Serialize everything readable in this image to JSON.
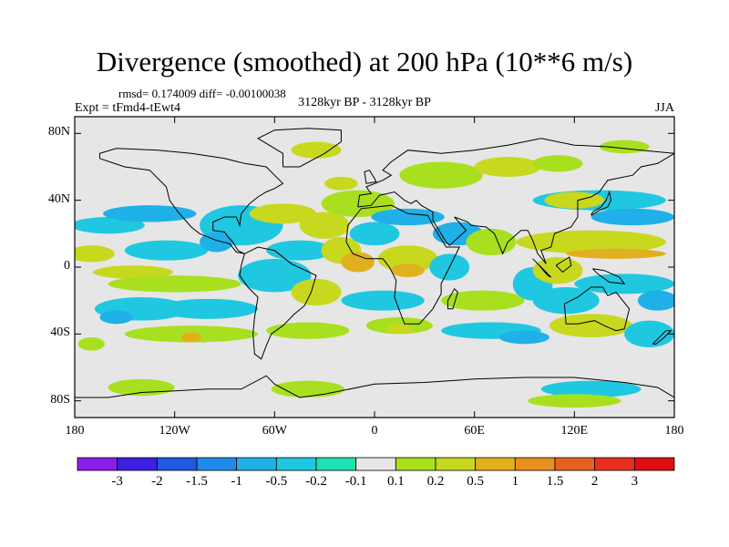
{
  "title": "Divergence (smoothed) at 200 hPa (10**6 m/s)",
  "stats": "rmsd= 0.174009 diff= -0.00100038",
  "experiment": "Expt = tFmd4-tEwt4",
  "period": "3128kyr BP - 3128kyr BP",
  "season": "JJA",
  "map": {
    "projection": "cylindrical-equidistant",
    "lon_range": [
      -180,
      180
    ],
    "lat_range": [
      -90,
      90
    ],
    "background_color": "#e6e6e6",
    "lat_ticks": [
      {
        "label": "80N",
        "lat": 80
      },
      {
        "label": "40N",
        "lat": 40
      },
      {
        "label": "0",
        "lat": 0
      },
      {
        "label": "40S",
        "lat": -40
      },
      {
        "label": "80S",
        "lat": -80
      }
    ],
    "lon_ticks": [
      {
        "label": "180",
        "lon": -180
      },
      {
        "label": "120W",
        "lon": -120
      },
      {
        "label": "60W",
        "lon": -60
      },
      {
        "label": "0",
        "lon": 0
      },
      {
        "label": "60E",
        "lon": 60
      },
      {
        "label": "120E",
        "lon": 120
      },
      {
        "label": "180",
        "lon": 180
      }
    ]
  },
  "colorbar": {
    "colors": [
      "#8a1fe8",
      "#3c1fe0",
      "#1f5be0",
      "#1f8be8",
      "#1fb0e8",
      "#1fc8e0",
      "#1fe0b0",
      "#e6e6e6",
      "#a8e01f",
      "#c8d81f",
      "#e0b01f",
      "#e8901f",
      "#e8601f",
      "#e8301f",
      "#e00f0f"
    ],
    "labels": [
      "-3",
      "-2",
      "-1.5",
      "-1",
      "-0.5",
      "-0.2",
      "-0.1",
      "0.1",
      "0.2",
      "0.5",
      "1",
      "1.5",
      "2",
      "3"
    ]
  },
  "field_blobs": [
    {
      "lon": -160,
      "lat": 25,
      "rlon": 22,
      "rlat": 5,
      "level": 5,
      "note": "cyan band N Pacific"
    },
    {
      "lon": -135,
      "lat": 32,
      "rlon": 28,
      "rlat": 5,
      "level": 4
    },
    {
      "lon": -170,
      "lat": 8,
      "rlon": 14,
      "rlat": 5,
      "level": 9
    },
    {
      "lon": -125,
      "lat": 10,
      "rlon": 25,
      "rlat": 6,
      "level": 5
    },
    {
      "lon": -145,
      "lat": -3,
      "rlon": 24,
      "rlat": 4,
      "level": 9
    },
    {
      "lon": -120,
      "lat": -10,
      "rlon": 40,
      "rlat": 5,
      "level": 8
    },
    {
      "lon": -140,
      "lat": -25,
      "rlon": 28,
      "rlat": 7,
      "level": 5
    },
    {
      "lon": -155,
      "lat": -30,
      "rlon": 10,
      "rlat": 4,
      "level": 4
    },
    {
      "lon": -100,
      "lat": -25,
      "rlon": 30,
      "rlat": 6,
      "level": 5
    },
    {
      "lon": -110,
      "lat": -40,
      "rlon": 40,
      "rlat": 5,
      "level": 8
    },
    {
      "lon": -110,
      "lat": -42,
      "rlon": 6,
      "rlat": 3,
      "level": 10
    },
    {
      "lon": -170,
      "lat": -46,
      "rlon": 8,
      "rlat": 4,
      "level": 8
    },
    {
      "lon": -80,
      "lat": 25,
      "rlon": 25,
      "rlat": 12,
      "level": 5
    },
    {
      "lon": -95,
      "lat": 15,
      "rlon": 10,
      "rlat": 6,
      "level": 4
    },
    {
      "lon": -55,
      "lat": 32,
      "rlon": 20,
      "rlat": 6,
      "level": 9
    },
    {
      "lon": -45,
      "lat": 10,
      "rlon": 20,
      "rlat": 6,
      "level": 5
    },
    {
      "lon": -30,
      "lat": 25,
      "rlon": 15,
      "rlat": 8,
      "level": 9
    },
    {
      "lon": -60,
      "lat": -5,
      "rlon": 22,
      "rlat": 10,
      "level": 5
    },
    {
      "lon": -35,
      "lat": -15,
      "rlon": 15,
      "rlat": 8,
      "level": 9
    },
    {
      "lon": -40,
      "lat": -38,
      "rlon": 25,
      "rlat": 5,
      "level": 8
    },
    {
      "lon": -10,
      "lat": 38,
      "rlon": 22,
      "rlat": 8,
      "level": 8
    },
    {
      "lon": 20,
      "lat": 30,
      "rlon": 22,
      "rlat": 5,
      "level": 4
    },
    {
      "lon": 0,
      "lat": 20,
      "rlon": 15,
      "rlat": 7,
      "level": 5
    },
    {
      "lon": -20,
      "lat": 10,
      "rlon": 12,
      "rlat": 8,
      "level": 9
    },
    {
      "lon": -10,
      "lat": 3,
      "rlon": 10,
      "rlat": 6,
      "level": 10
    },
    {
      "lon": 20,
      "lat": 5,
      "rlon": 18,
      "rlat": 8,
      "level": 9
    },
    {
      "lon": 20,
      "lat": -2,
      "rlon": 10,
      "rlat": 4,
      "level": 10
    },
    {
      "lon": 5,
      "lat": -20,
      "rlon": 25,
      "rlat": 6,
      "level": 5
    },
    {
      "lon": 15,
      "lat": -35,
      "rlon": 20,
      "rlat": 5,
      "level": 8
    },
    {
      "lon": 15,
      "lat": -37,
      "rlon": 8,
      "rlat": 3,
      "level": 9
    },
    {
      "lon": 50,
      "lat": 20,
      "rlon": 15,
      "rlat": 7,
      "level": 4
    },
    {
      "lon": 45,
      "lat": 0,
      "rlon": 12,
      "rlat": 8,
      "level": 5
    },
    {
      "lon": 70,
      "lat": 15,
      "rlon": 15,
      "rlat": 8,
      "level": 8
    },
    {
      "lon": 65,
      "lat": -20,
      "rlon": 25,
      "rlat": 6,
      "level": 8
    },
    {
      "lon": 70,
      "lat": -38,
      "rlon": 30,
      "rlat": 5,
      "level": 5
    },
    {
      "lon": 90,
      "lat": -42,
      "rlon": 15,
      "rlat": 4,
      "level": 4
    },
    {
      "lon": 95,
      "lat": -10,
      "rlon": 12,
      "rlat": 10,
      "level": 5
    },
    {
      "lon": 110,
      "lat": -2,
      "rlon": 15,
      "rlat": 8,
      "level": 9
    },
    {
      "lon": 115,
      "lat": -20,
      "rlon": 20,
      "rlat": 8,
      "level": 5
    },
    {
      "lon": 130,
      "lat": -35,
      "rlon": 25,
      "rlat": 7,
      "level": 9
    },
    {
      "lon": 135,
      "lat": 40,
      "rlon": 40,
      "rlat": 6,
      "level": 5
    },
    {
      "lon": 155,
      "lat": 30,
      "rlon": 25,
      "rlat": 5,
      "level": 4
    },
    {
      "lon": 130,
      "lat": 15,
      "rlon": 45,
      "rlat": 7,
      "level": 9
    },
    {
      "lon": 145,
      "lat": 8,
      "rlon": 30,
      "rlat": 3,
      "level": 10
    },
    {
      "lon": 150,
      "lat": -10,
      "rlon": 30,
      "rlat": 6,
      "level": 5
    },
    {
      "lon": 170,
      "lat": -20,
      "rlon": 12,
      "rlat": 6,
      "level": 4
    },
    {
      "lon": 165,
      "lat": -40,
      "rlon": 15,
      "rlat": 8,
      "level": 5
    },
    {
      "lon": 40,
      "lat": 55,
      "rlon": 25,
      "rlat": 8,
      "level": 8
    },
    {
      "lon": 80,
      "lat": 60,
      "rlon": 20,
      "rlat": 6,
      "level": 9
    },
    {
      "lon": 110,
      "lat": 62,
      "rlon": 15,
      "rlat": 5,
      "level": 8
    },
    {
      "lon": 120,
      "lat": 40,
      "rlon": 18,
      "rlat": 5,
      "level": 9
    },
    {
      "lon": -35,
      "lat": 70,
      "rlon": 15,
      "rlat": 5,
      "level": 9
    },
    {
      "lon": -20,
      "lat": 50,
      "rlon": 10,
      "rlat": 4,
      "level": 9
    },
    {
      "lon": 150,
      "lat": 72,
      "rlon": 15,
      "rlat": 4,
      "level": 8
    },
    {
      "lon": -140,
      "lat": -72,
      "rlon": 20,
      "rlat": 5,
      "level": 8
    },
    {
      "lon": -40,
      "lat": -73,
      "rlon": 22,
      "rlat": 5,
      "level": 8
    },
    {
      "lon": 130,
      "lat": -73,
      "rlon": 30,
      "rlat": 5,
      "level": 5
    },
    {
      "lon": 120,
      "lat": -80,
      "rlon": 28,
      "rlat": 4,
      "level": 8
    }
  ],
  "coastlines": [
    {
      "name": "North America",
      "pts": [
        [
          -165,
          65
        ],
        [
          -150,
          60
        ],
        [
          -135,
          58
        ],
        [
          -125,
          48
        ],
        [
          -123,
          40
        ],
        [
          -118,
          33
        ],
        [
          -110,
          24
        ],
        [
          -105,
          20
        ],
        [
          -95,
          16
        ],
        [
          -87,
          14
        ],
        [
          -83,
          9
        ],
        [
          -78,
          8
        ],
        [
          -82,
          10
        ],
        [
          -85,
          15
        ],
        [
          -88,
          18
        ],
        [
          -90,
          21
        ],
        [
          -97,
          22
        ],
        [
          -97,
          27
        ],
        [
          -90,
          30
        ],
        [
          -83,
          30
        ],
        [
          -81,
          25
        ],
        [
          -80,
          32
        ],
        [
          -75,
          38
        ],
        [
          -70,
          42
        ],
        [
          -65,
          45
        ],
        [
          -60,
          47
        ],
        [
          -55,
          50
        ],
        [
          -60,
          55
        ],
        [
          -65,
          60
        ],
        [
          -78,
          62
        ],
        [
          -90,
          65
        ],
        [
          -110,
          68
        ],
        [
          -130,
          70
        ],
        [
          -155,
          71
        ],
        [
          -165,
          68
        ],
        [
          -165,
          65
        ]
      ]
    },
    {
      "name": "Greenland",
      "pts": [
        [
          -55,
          60
        ],
        [
          -45,
          60
        ],
        [
          -30,
          68
        ],
        [
          -20,
          75
        ],
        [
          -20,
          82
        ],
        [
          -40,
          83
        ],
        [
          -60,
          82
        ],
        [
          -70,
          77
        ],
        [
          -55,
          68
        ],
        [
          -55,
          60
        ]
      ]
    },
    {
      "name": "South America",
      "pts": [
        [
          -78,
          8
        ],
        [
          -70,
          12
        ],
        [
          -60,
          10
        ],
        [
          -50,
          2
        ],
        [
          -35,
          -5
        ],
        [
          -38,
          -15
        ],
        [
          -42,
          -23
        ],
        [
          -48,
          -28
        ],
        [
          -55,
          -35
        ],
        [
          -62,
          -40
        ],
        [
          -65,
          -47
        ],
        [
          -68,
          -55
        ],
        [
          -72,
          -52
        ],
        [
          -73,
          -40
        ],
        [
          -72,
          -30
        ],
        [
          -70,
          -18
        ],
        [
          -76,
          -12
        ],
        [
          -81,
          -5
        ],
        [
          -80,
          1
        ],
        [
          -78,
          8
        ]
      ]
    },
    {
      "name": "Africa",
      "pts": [
        [
          -17,
          15
        ],
        [
          -16,
          25
        ],
        [
          -8,
          35
        ],
        [
          10,
          37
        ],
        [
          20,
          32
        ],
        [
          32,
          31
        ],
        [
          35,
          25
        ],
        [
          43,
          12
        ],
        [
          51,
          12
        ],
        [
          45,
          0
        ],
        [
          40,
          -10
        ],
        [
          40,
          -16
        ],
        [
          35,
          -25
        ],
        [
          27,
          -34
        ],
        [
          18,
          -34
        ],
        [
          12,
          -18
        ],
        [
          13,
          -8
        ],
        [
          9,
          0
        ],
        [
          5,
          5
        ],
        [
          -5,
          5
        ],
        [
          -13,
          8
        ],
        [
          -17,
          15
        ]
      ]
    },
    {
      "name": "Eurasia",
      "pts": [
        [
          -10,
          36
        ],
        [
          -9,
          43
        ],
        [
          -2,
          44
        ],
        [
          -5,
          48
        ],
        [
          5,
          52
        ],
        [
          10,
          55
        ],
        [
          5,
          58
        ],
        [
          10,
          63
        ],
        [
          20,
          70
        ],
        [
          40,
          68
        ],
        [
          60,
          70
        ],
        [
          80,
          73
        ],
        [
          100,
          77
        ],
        [
          120,
          73
        ],
        [
          140,
          72
        ],
        [
          160,
          70
        ],
        [
          180,
          68
        ],
        [
          170,
          62
        ],
        [
          160,
          60
        ],
        [
          155,
          55
        ],
        [
          140,
          52
        ],
        [
          135,
          45
        ],
        [
          130,
          42
        ],
        [
          122,
          40
        ],
        [
          122,
          30
        ],
        [
          118,
          24
        ],
        [
          108,
          20
        ],
        [
          106,
          12
        ],
        [
          100,
          10
        ],
        [
          103,
          2
        ],
        [
          98,
          8
        ],
        [
          95,
          16
        ],
        [
          92,
          22
        ],
        [
          88,
          22
        ],
        [
          80,
          15
        ],
        [
          77,
          8
        ],
        [
          72,
          20
        ],
        [
          67,
          24
        ],
        [
          58,
          25
        ],
        [
          56,
          27
        ],
        [
          48,
          30
        ],
        [
          55,
          22
        ],
        [
          45,
          13
        ],
        [
          43,
          15
        ],
        [
          35,
          28
        ],
        [
          35,
          33
        ],
        [
          28,
          37
        ],
        [
          25,
          40
        ],
        [
          22,
          38
        ],
        [
          18,
          40
        ],
        [
          12,
          45
        ],
        [
          8,
          44
        ],
        [
          3,
          43
        ],
        [
          -2,
          37
        ],
        [
          -10,
          36
        ]
      ]
    },
    {
      "name": "Britain",
      "pts": [
        [
          -5,
          50
        ],
        [
          1,
          51
        ],
        [
          0,
          53
        ],
        [
          -3,
          58
        ],
        [
          -6,
          57
        ],
        [
          -5,
          50
        ]
      ]
    },
    {
      "name": "Japan",
      "pts": [
        [
          130,
          31
        ],
        [
          135,
          34
        ],
        [
          140,
          36
        ],
        [
          142,
          40
        ],
        [
          141,
          45
        ],
        [
          139,
          40
        ],
        [
          136,
          36
        ],
        [
          131,
          33
        ],
        [
          130,
          31
        ]
      ]
    },
    {
      "name": "Madagascar",
      "pts": [
        [
          44,
          -25
        ],
        [
          47,
          -25
        ],
        [
          50,
          -15
        ],
        [
          48,
          -13
        ],
        [
          44,
          -20
        ],
        [
          44,
          -25
        ]
      ]
    },
    {
      "name": "Australia",
      "pts": [
        [
          114,
          -22
        ],
        [
          122,
          -18
        ],
        [
          130,
          -12
        ],
        [
          137,
          -12
        ],
        [
          140,
          -17
        ],
        [
          145,
          -15
        ],
        [
          153,
          -25
        ],
        [
          150,
          -37
        ],
        [
          145,
          -38
        ],
        [
          138,
          -35
        ],
        [
          132,
          -32
        ],
        [
          122,
          -34
        ],
        [
          115,
          -34
        ],
        [
          114,
          -22
        ]
      ]
    },
    {
      "name": "New Zealand",
      "pts": [
        [
          167,
          -46
        ],
        [
          172,
          -41
        ],
        [
          175,
          -38
        ],
        [
          178,
          -38
        ],
        [
          174,
          -42
        ],
        [
          169,
          -46
        ],
        [
          167,
          -46
        ]
      ]
    },
    {
      "name": "Borneo",
      "pts": [
        [
          109,
          1
        ],
        [
          113,
          -3
        ],
        [
          118,
          1
        ],
        [
          117,
          6
        ],
        [
          112,
          3
        ],
        [
          109,
          1
        ]
      ]
    },
    {
      "name": "Sumatra",
      "pts": [
        [
          95,
          5
        ],
        [
          100,
          0
        ],
        [
          106,
          -6
        ],
        [
          104,
          -5
        ],
        [
          98,
          2
        ],
        [
          95,
          5
        ]
      ]
    },
    {
      "name": "New Guinea",
      "pts": [
        [
          131,
          -1
        ],
        [
          138,
          -2
        ],
        [
          147,
          -6
        ],
        [
          150,
          -10
        ],
        [
          141,
          -9
        ],
        [
          134,
          -4
        ],
        [
          131,
          -1
        ]
      ]
    },
    {
      "name": "Antarctica",
      "pts": [
        [
          -180,
          -78
        ],
        [
          -160,
          -78
        ],
        [
          -140,
          -75
        ],
        [
          -120,
          -74
        ],
        [
          -100,
          -73
        ],
        [
          -80,
          -73
        ],
        [
          -65,
          -65
        ],
        [
          -60,
          -70
        ],
        [
          -45,
          -78
        ],
        [
          -30,
          -76
        ],
        [
          0,
          -70
        ],
        [
          30,
          -69
        ],
        [
          60,
          -67
        ],
        [
          90,
          -66
        ],
        [
          120,
          -66
        ],
        [
          150,
          -69
        ],
        [
          170,
          -72
        ],
        [
          180,
          -78
        ]
      ]
    }
  ]
}
